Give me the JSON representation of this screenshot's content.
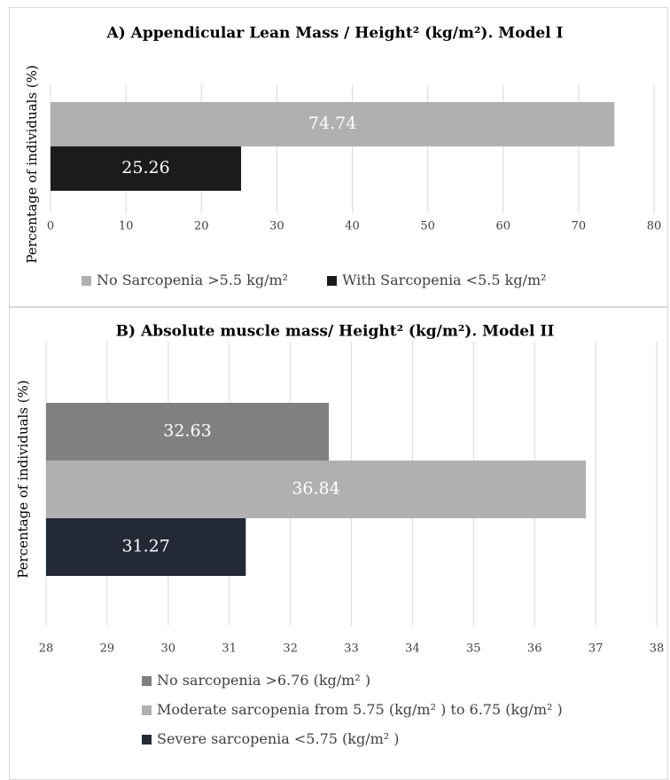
{
  "chart_data": [
    {
      "type": "hbar",
      "title": "A) Appendicular Lean Mass / Height² (kg/m²). Model I",
      "y_label": "Percentage of individuals (%)",
      "series": [
        {
          "name": "No Sarcopenia >5.5 kg/m²",
          "color": "#b0b0b0",
          "values": [
            74.74
          ]
        },
        {
          "name": "With Sarcopenia <5.5 kg/m²",
          "color": "#1b1b1b",
          "values": [
            25.26
          ]
        }
      ],
      "xlim": [
        0,
        80
      ],
      "xticks": [
        0,
        10,
        20,
        30,
        40,
        50,
        60,
        70,
        80
      ],
      "grid": true
    },
    {
      "type": "hbar",
      "title": "B) Absolute muscle mass/ Height² (kg/m²). Model II",
      "y_label": "Percentage of individuals (%)",
      "series": [
        {
          "name": "No sarcopenia >6.76  (kg/m² )",
          "color": "#808080",
          "values": [
            32.63
          ]
        },
        {
          "name": "Moderate sarcopenia from 5.75 (kg/m² ) to 6.75 (kg/m² )",
          "color": "#b0b0b0",
          "values": [
            36.84
          ]
        },
        {
          "name": "Severe sarcopenia <5.75 (kg/m² )",
          "color": "#232a36",
          "values": [
            31.27
          ]
        }
      ],
      "xlim": [
        28,
        38
      ],
      "xticks": [
        28,
        29,
        30,
        31,
        32,
        33,
        34,
        35,
        36,
        37,
        38
      ],
      "grid": true
    }
  ]
}
